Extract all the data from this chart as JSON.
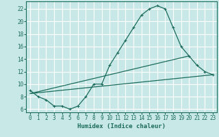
{
  "xlabel": "Humidex (Indice chaleur)",
  "ylabel": "",
  "background_color": "#c8e8e8",
  "grid_color": "#ffffff",
  "line_color": "#1a6b5a",
  "xlim": [
    -0.5,
    23.5
  ],
  "ylim": [
    5.5,
    23.2
  ],
  "xticks": [
    0,
    1,
    2,
    3,
    4,
    5,
    6,
    7,
    8,
    9,
    10,
    11,
    12,
    13,
    14,
    15,
    16,
    17,
    18,
    19,
    20,
    21,
    22,
    23
  ],
  "yticks": [
    6,
    8,
    10,
    12,
    14,
    16,
    18,
    20,
    22
  ],
  "series": [
    {
      "x": [
        0,
        1,
        2,
        3,
        4,
        5,
        6,
        7,
        8,
        9,
        10,
        11,
        12,
        13,
        14,
        15,
        16,
        17,
        18,
        19,
        20,
        21,
        22,
        23
      ],
      "y": [
        9,
        8,
        7.5,
        6.5,
        6.5,
        6,
        6.5,
        8,
        10,
        10,
        13,
        15,
        17,
        19,
        21,
        22,
        22.5,
        22,
        19,
        16,
        14.5,
        13,
        12,
        11.5
      ],
      "has_markers": true
    },
    {
      "x": [
        0,
        23
      ],
      "y": [
        8.5,
        11.5
      ],
      "has_markers": false
    },
    {
      "x": [
        0,
        20
      ],
      "y": [
        8.5,
        14.5
      ],
      "has_markers": false
    }
  ]
}
